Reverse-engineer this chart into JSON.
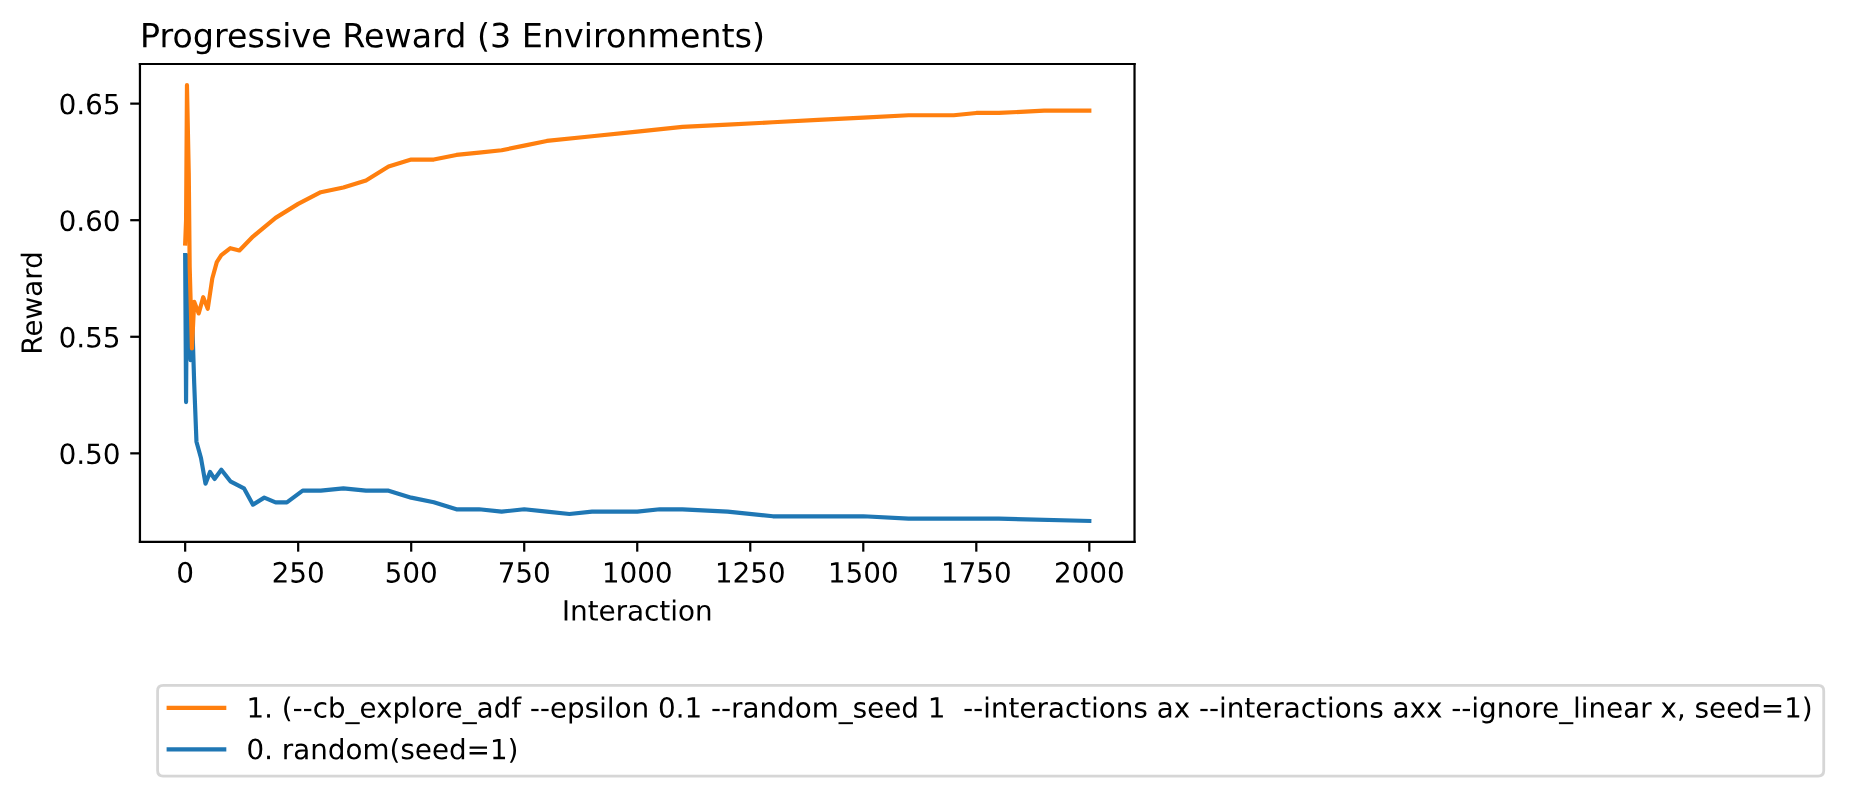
{
  "chart_data": {
    "type": "line",
    "title": "Progressive Reward (3 Environments)",
    "xlabel": "Interaction",
    "ylabel": "Reward",
    "xlim": [
      -100,
      2100
    ],
    "xticks": [
      0,
      250,
      500,
      750,
      1000,
      1250,
      1500,
      1750,
      2000
    ],
    "ylim": [
      0.462,
      0.667
    ],
    "yticks": [
      {
        "value": 0.5,
        "label": "0.50"
      },
      {
        "value": 0.55,
        "label": "0.55"
      },
      {
        "value": 0.6,
        "label": "0.60"
      },
      {
        "value": 0.65,
        "label": "0.65"
      }
    ],
    "grid": false,
    "legend": "bottom",
    "marker": "none",
    "line_style": "solid",
    "series": [
      {
        "name": "1. (--cb_explore_adf --epsilon 0.1 --random_seed 1  --interactions ax --interactions axx --ignore_linear x, seed=1)",
        "color": "#ff7f0e",
        "x": [
          0,
          2,
          4,
          8,
          10,
          15,
          20,
          30,
          40,
          50,
          60,
          70,
          80,
          100,
          120,
          150,
          200,
          250,
          300,
          350,
          400,
          450,
          500,
          550,
          600,
          650,
          700,
          750,
          800,
          900,
          1000,
          1100,
          1200,
          1300,
          1400,
          1500,
          1600,
          1700,
          1750,
          1800,
          1900,
          2000
        ],
        "values": [
          0.59,
          0.6,
          0.658,
          0.62,
          0.58,
          0.545,
          0.565,
          0.56,
          0.567,
          0.562,
          0.575,
          0.582,
          0.585,
          0.588,
          0.587,
          0.593,
          0.601,
          0.607,
          0.612,
          0.614,
          0.617,
          0.623,
          0.626,
          0.626,
          0.628,
          0.629,
          0.63,
          0.632,
          0.634,
          0.636,
          0.638,
          0.64,
          0.641,
          0.642,
          0.643,
          0.644,
          0.645,
          0.645,
          0.646,
          0.646,
          0.647,
          0.647
        ]
      },
      {
        "name": "0. random(seed=1)",
        "color": "#1f77b4",
        "x": [
          0,
          2,
          4,
          8,
          12,
          16,
          20,
          25,
          35,
          45,
          55,
          65,
          80,
          100,
          130,
          150,
          175,
          200,
          225,
          260,
          300,
          350,
          400,
          450,
          500,
          550,
          600,
          650,
          700,
          750,
          800,
          850,
          900,
          1000,
          1050,
          1100,
          1200,
          1300,
          1400,
          1500,
          1600,
          1700,
          1800,
          2000
        ],
        "values": [
          0.585,
          0.522,
          0.585,
          0.56,
          0.54,
          0.555,
          0.53,
          0.505,
          0.498,
          0.487,
          0.492,
          0.489,
          0.493,
          0.488,
          0.485,
          0.478,
          0.481,
          0.479,
          0.479,
          0.484,
          0.484,
          0.485,
          0.484,
          0.484,
          0.481,
          0.479,
          0.476,
          0.476,
          0.475,
          0.476,
          0.475,
          0.474,
          0.475,
          0.475,
          0.476,
          0.476,
          0.475,
          0.473,
          0.473,
          0.473,
          0.472,
          0.472,
          0.472,
          0.471
        ]
      }
    ]
  }
}
